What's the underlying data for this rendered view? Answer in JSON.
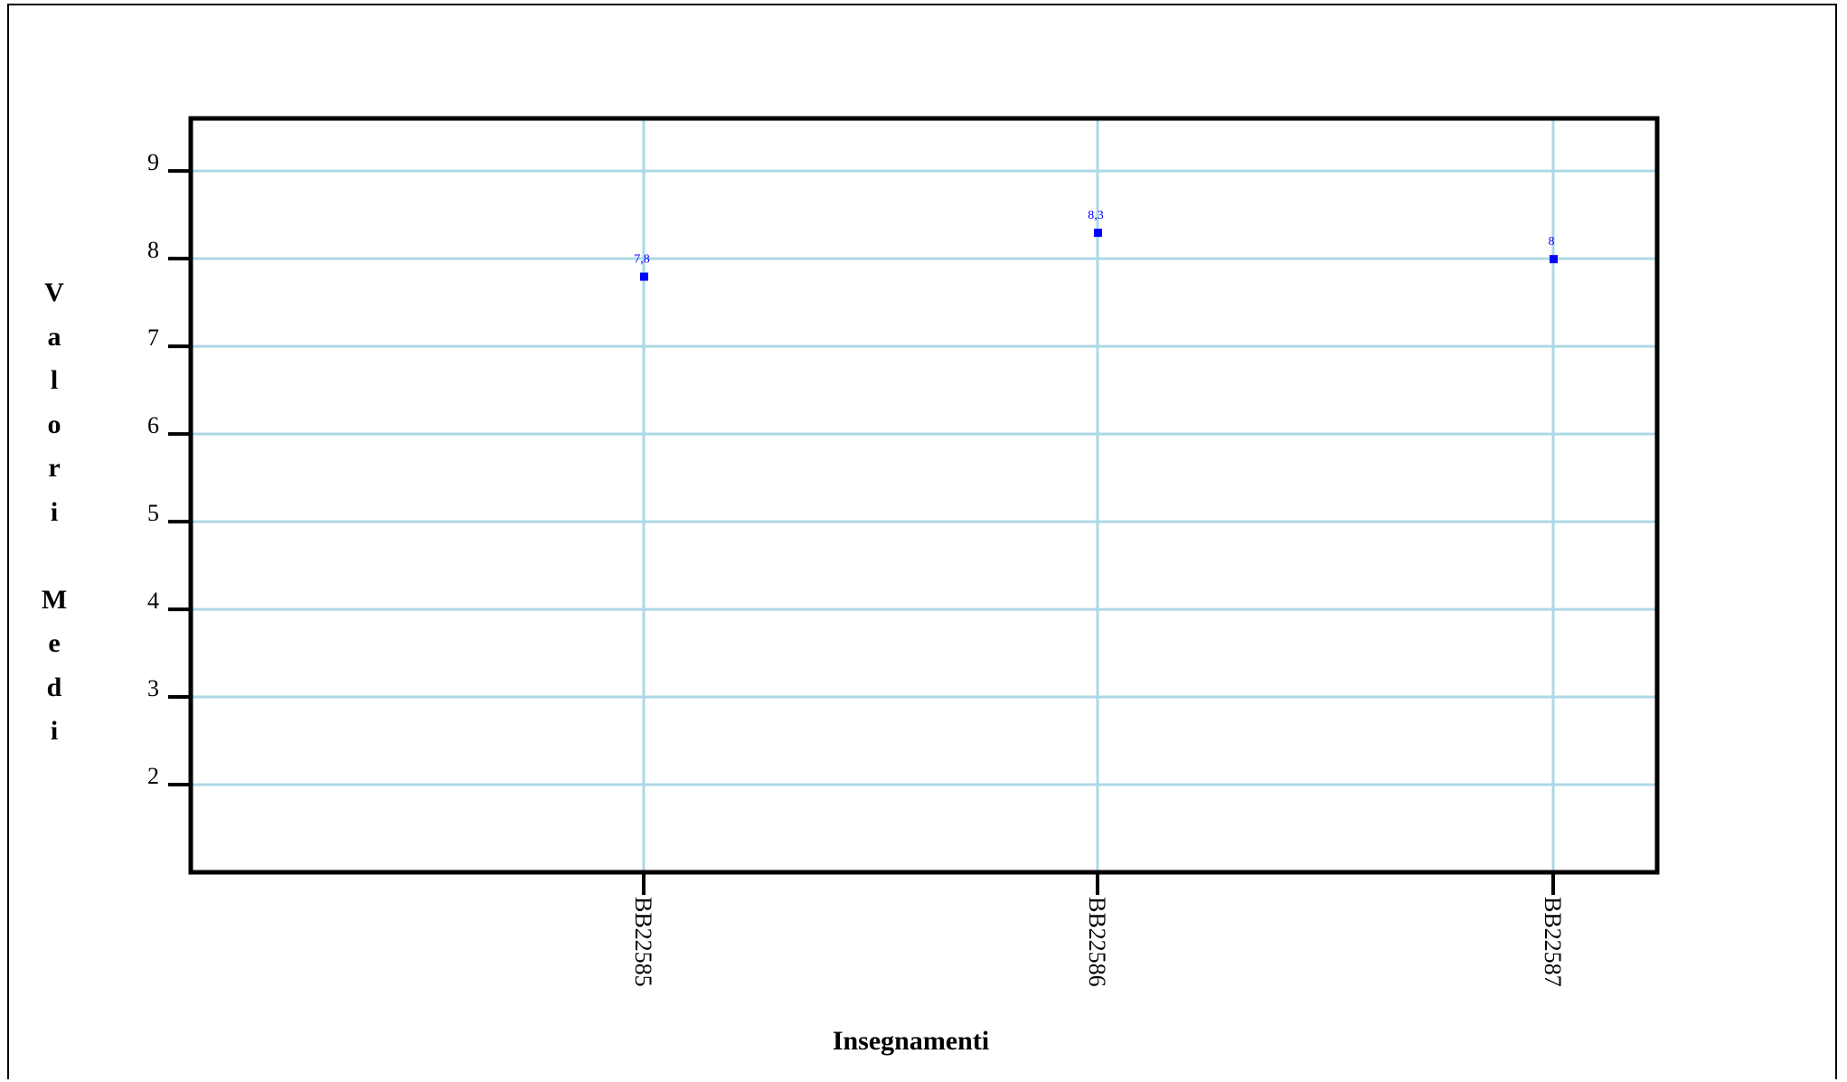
{
  "chart_data": {
    "type": "scatter",
    "categories": [
      "BB22585",
      "BB22586",
      "BB22587"
    ],
    "values": [
      7.8,
      8.3,
      8
    ],
    "value_labels": [
      "7,8",
      "8,3",
      "8"
    ],
    "xlabel": "Insegnamenti",
    "ylabel": "Valori Medi",
    "yticks": [
      2,
      3,
      4,
      5,
      6,
      7,
      8,
      9
    ],
    "ylim": [
      1,
      9.6
    ],
    "grid": true,
    "colors": {
      "point": "#0000ff",
      "grid": "#add8e6",
      "axis": "#000000"
    }
  }
}
